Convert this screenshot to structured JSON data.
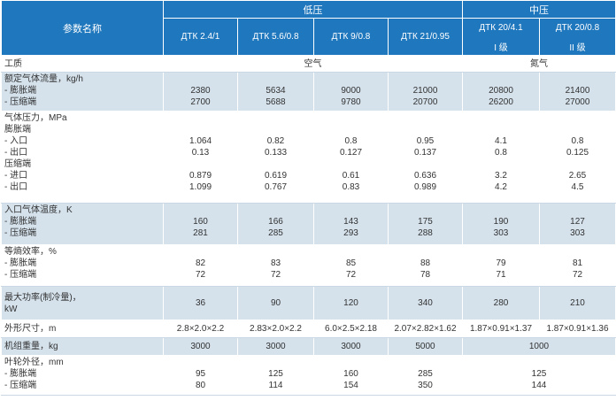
{
  "header": {
    "param_label": "参数名称",
    "group_low": "低压",
    "group_mid": "中压",
    "models": [
      "ДТК 2.4/1",
      "ДТК 5.6/0.8",
      "ДТК 9/0.8",
      "ДТК 21/0.95",
      "ДТК 20/4.1",
      "ДТК 20/0.8"
    ],
    "grades": [
      "I 级",
      "II 级"
    ]
  },
  "rows": {
    "medium": {
      "label": "工质",
      "low": "空气",
      "mid": "氮气"
    },
    "flow": {
      "labels": [
        "额定气体流量，kg/h",
        "- 膨胀端",
        "- 压缩端"
      ],
      "cols": [
        [
          "",
          "2380",
          "2700"
        ],
        [
          "",
          "5634",
          "5688"
        ],
        [
          "",
          "9000",
          "9780"
        ],
        [
          "",
          "21000",
          "20700"
        ],
        [
          "",
          "20800",
          "26200"
        ],
        [
          "",
          "21400",
          "27000"
        ]
      ]
    },
    "pressure": {
      "labels": [
        "气体压力，MPa",
        "膨胀端",
        "- 入口",
        "- 出口",
        "压缩端",
        "- 进口",
        "- 出口"
      ],
      "cols": [
        [
          "",
          "",
          "1.064",
          "0.13",
          "",
          "0.879",
          "1.099"
        ],
        [
          "",
          "",
          "0.82",
          "0.133",
          "",
          "0.619",
          "0.767"
        ],
        [
          "",
          "",
          "0.8",
          "0.127",
          "",
          "0.61",
          "0.83"
        ],
        [
          "",
          "",
          "0.95",
          "0.137",
          "",
          "0.636",
          "0.989"
        ],
        [
          "",
          "",
          "4.1",
          "0.8",
          "",
          "3.2",
          "4.2"
        ],
        [
          "",
          "",
          "0.8",
          "0.125",
          "",
          "2.65",
          "4.5"
        ]
      ]
    },
    "temp": {
      "labels": [
        "入口气体温度，K",
        "- 膨胀端",
        "- 压缩端"
      ],
      "cols": [
        [
          "",
          "160",
          "281"
        ],
        [
          "",
          "166",
          "285"
        ],
        [
          "",
          "143",
          "293"
        ],
        [
          "",
          "175",
          "288"
        ],
        [
          "",
          "190",
          "303"
        ],
        [
          "",
          "127",
          "303"
        ]
      ]
    },
    "efficiency": {
      "labels": [
        "等熵效率，%",
        "- 膨胀端",
        "- 压缩端"
      ],
      "cols": [
        [
          "",
          "82",
          "72"
        ],
        [
          "",
          "83",
          "72"
        ],
        [
          "",
          "85",
          "72"
        ],
        [
          "",
          "88",
          "78"
        ],
        [
          "",
          "79",
          "71"
        ],
        [
          "",
          "81",
          "72"
        ]
      ]
    },
    "power": {
      "labels": [
        "最大功率(制冷量)，",
        "kW"
      ],
      "values": [
        "36",
        "90",
        "120",
        "340",
        "280",
        "210"
      ]
    },
    "dims": {
      "label": "外形尺寸，m",
      "values": [
        "2.8×2.0×2.2",
        "2.83×2.0×2.2",
        "6.0×2.5×2.18",
        "2.07×2.82×1.62",
        "1.87×0.91×1.37",
        "1.87×0.91×1.36"
      ]
    },
    "weight": {
      "label": "机组重量，kg",
      "values": [
        "3000",
        "3000",
        "3000",
        "5000"
      ],
      "mid": "1000"
    },
    "impeller": {
      "labels": [
        "叶轮外径，mm",
        "- 膨胀端",
        "- 压缩端"
      ],
      "cols": [
        [
          "",
          "95",
          "80"
        ],
        [
          "",
          "125",
          "114"
        ],
        [
          "",
          "160",
          "154"
        ],
        [
          "",
          "285",
          "350"
        ]
      ],
      "mid": [
        "",
        "125",
        "144"
      ]
    }
  }
}
